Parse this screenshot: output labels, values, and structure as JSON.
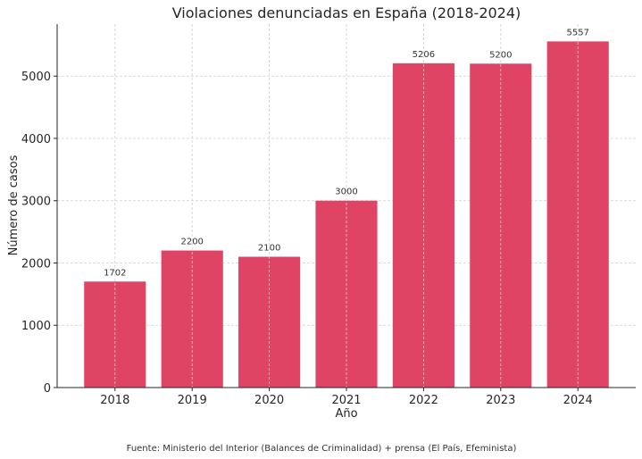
{
  "chart_data": {
    "type": "bar",
    "title": "Violaciones denunciadas en España (2018-2024)",
    "xlabel": "Año",
    "ylabel": "Número de casos",
    "categories": [
      "2018",
      "2019",
      "2020",
      "2021",
      "2022",
      "2023",
      "2024"
    ],
    "values": [
      1702,
      2200,
      2100,
      3000,
      5206,
      5200,
      5557
    ],
    "data_labels": [
      "1702",
      "2200",
      "2100",
      "3000",
      "5206",
      "5200",
      "5557"
    ],
    "ylim": [
      0,
      5835
    ],
    "yticks": [
      0,
      1000,
      2000,
      3000,
      4000,
      5000
    ],
    "grid": true,
    "bar_color": "#e04465",
    "footnote": "Fuente: Ministerio del Interior (Balances de Criminalidad) + prensa (El País, Efeminista)"
  }
}
